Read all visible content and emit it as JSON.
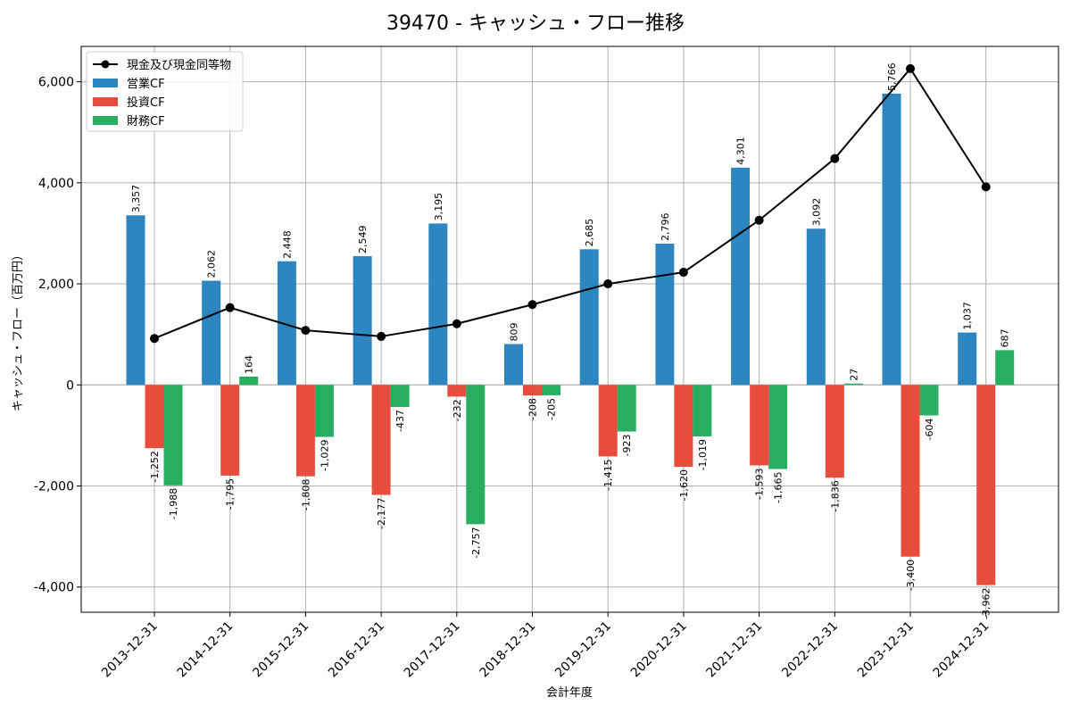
{
  "chart_data": {
    "type": "bar",
    "title": "39470 - キャッシュ・フロー推移",
    "xlabel": "会計年度",
    "ylabel": "キャッシュ・フロー（百万円）",
    "categories": [
      "2013-12-31",
      "2014-12-31",
      "2015-12-31",
      "2016-12-31",
      "2017-12-31",
      "2018-12-31",
      "2019-12-31",
      "2020-12-31",
      "2021-12-31",
      "2022-12-31",
      "2023-12-31",
      "2024-12-31"
    ],
    "series": [
      {
        "name": "営業CF",
        "kind": "bar",
        "color": "#2e86c1",
        "values": [
          3357,
          2062,
          2448,
          2549,
          3195,
          809,
          2685,
          2796,
          4301,
          3092,
          5766,
          1037
        ],
        "labels": [
          "3,357",
          "2,062",
          "2,448",
          "2,549",
          "3,195",
          "809",
          "2,685",
          "2,796",
          "4,301",
          "3,092",
          "5,766",
          "1,037"
        ]
      },
      {
        "name": "投資CF",
        "kind": "bar",
        "color": "#e74c3c",
        "values": [
          -1252,
          -1795,
          -1808,
          -2177,
          -232,
          -208,
          -1415,
          -1620,
          -1593,
          -1836,
          -3400,
          -3962
        ],
        "labels": [
          "-1,252",
          "-1,795",
          "-1,808",
          "-2,177",
          "-232",
          "-208",
          "-1,415",
          "-1,620",
          "-1,593",
          "-1,836",
          "-3,400",
          "-3,962"
        ]
      },
      {
        "name": "財務CF",
        "kind": "bar",
        "color": "#27ae60",
        "values": [
          -1988,
          164,
          -1029,
          -437,
          -2757,
          -205,
          -923,
          -1019,
          -1665,
          27,
          -604,
          687
        ],
        "labels": [
          "-1,988",
          "164",
          "-1,029",
          "-437",
          "-2,757",
          "-205",
          "-923",
          "-1,019",
          "-1,665",
          "27",
          "-604",
          "687"
        ]
      },
      {
        "name": "現金及び現金同等物",
        "kind": "line",
        "color": "#000000",
        "values": [
          920,
          1530,
          1080,
          960,
          1210,
          1590,
          2000,
          2230,
          3260,
          4480,
          6260,
          3920
        ]
      }
    ],
    "yticks": [
      -4000,
      -2000,
      0,
      2000,
      4000,
      6000
    ],
    "ytick_labels": [
      "-4,000",
      "-2,000",
      "0",
      "2,000",
      "4,000",
      "6,000"
    ],
    "ylim": [
      -4500,
      6700
    ],
    "grid": true,
    "legend_position": "top-left"
  }
}
